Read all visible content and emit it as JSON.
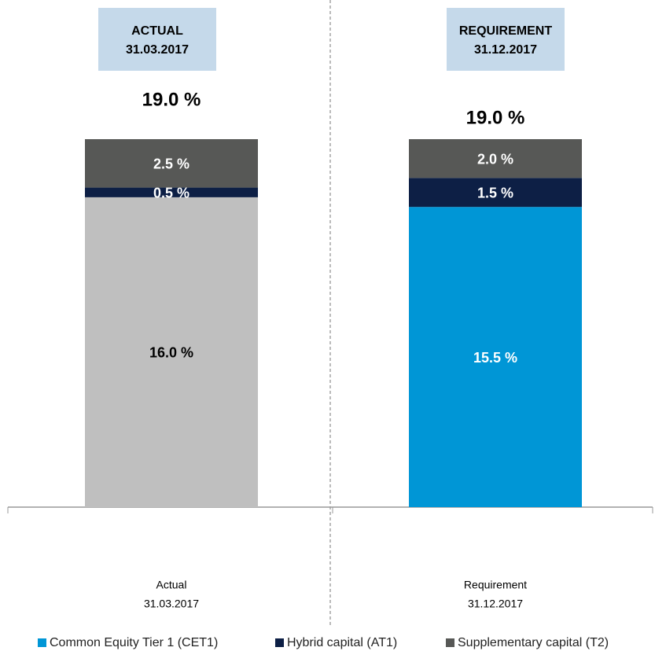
{
  "chart_data": {
    "type": "stacked-bar",
    "headers": [
      [
        "ACTUAL",
        "31.03.2017"
      ],
      [
        "REQUIREMENT",
        "31.12.2017"
      ]
    ],
    "categories": [
      [
        "Actual",
        "31.03.2017"
      ],
      [
        "Requirement",
        "31.12.2017"
      ]
    ],
    "totals": [
      19.0,
      19.0
    ],
    "total_labels": [
      "19.0 %",
      "19.0 %"
    ],
    "series": [
      {
        "name": "Common Equity Tier 1 (CET1)",
        "color": "#0096d6",
        "point_colors": [
          "#bfbfbf",
          "#0096d6"
        ],
        "values": [
          16.0,
          15.5
        ],
        "value_labels": [
          "16.0 %",
          "15.5 %"
        ]
      },
      {
        "name": "Hybrid capital (AT1)",
        "color": "#0d1f45",
        "point_colors": [
          "#0d1f45",
          "#0d1f45"
        ],
        "values": [
          0.5,
          1.5
        ],
        "value_labels": [
          "0.5 %",
          "1.5 %"
        ]
      },
      {
        "name": "Supplementary capital (T2)",
        "color": "#575856",
        "point_colors": [
          "#575856",
          "#575856"
        ],
        "values": [
          2.5,
          2.0
        ],
        "value_labels": [
          "2.5 %",
          "2.0 %"
        ]
      }
    ]
  }
}
